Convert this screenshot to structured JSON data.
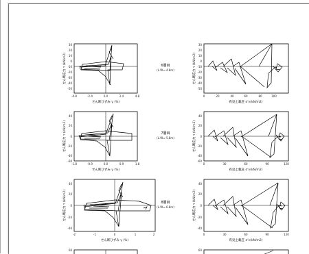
{
  "panels": {
    "left_ylabel": "せん断応力 τ (kN/m2)",
    "left_xlabel": "せん断ひずみ γ (%)",
    "right_ylabel": "せん断応力 τ (kN/m2)",
    "right_xlabel": "有効上載圧 σ'v(kN/m2)"
  },
  "rows": [
    {
      "caption_line1": "6層目",
      "caption_line2": "(L.W=-4.8m)",
      "left_yticks": [
        "30",
        "20",
        "10",
        "0",
        "-10",
        "-20",
        "-30",
        "-40",
        "-50"
      ],
      "left_xticks": [
        "-4.8",
        "-2.4",
        "0.0",
        "2.4",
        "4.8"
      ],
      "right_yticks": [
        "30",
        "20",
        "10",
        "0",
        "-10",
        "-20",
        "-30",
        "-40",
        "-50"
      ],
      "right_xticks": [
        "0",
        "20",
        "40",
        "60",
        "80",
        "100"
      ]
    },
    {
      "caption_line1": "7層目",
      "caption_line2": "(L.W=-5.8m)",
      "left_yticks": [
        "40",
        "20",
        "0",
        "-20",
        "-40",
        "-60"
      ],
      "left_xticks": [
        "-1.8",
        "-0.9",
        "0.0",
        "0.9",
        "1.8"
      ],
      "right_yticks": [
        "40",
        "20",
        "0",
        "-20",
        "-40",
        "-60"
      ],
      "right_xticks": [
        "0",
        "30",
        "60",
        "90",
        "120"
      ]
    },
    {
      "caption_line1": "8層目",
      "caption_line2": "(L.W=-6.8m)",
      "left_yticks": [
        "40",
        "20",
        "0",
        "-20",
        "-40"
      ],
      "left_xticks": [
        "-2",
        "-1",
        "0",
        "1",
        "2"
      ],
      "right_yticks": [
        "40",
        "20",
        "0",
        "-20",
        "-40"
      ],
      "right_xticks": [
        "0",
        "30",
        "60",
        "90",
        "120"
      ]
    },
    {
      "left_yticks": [
        "60"
      ],
      "right_yticks": [
        "60"
      ]
    }
  ]
}
